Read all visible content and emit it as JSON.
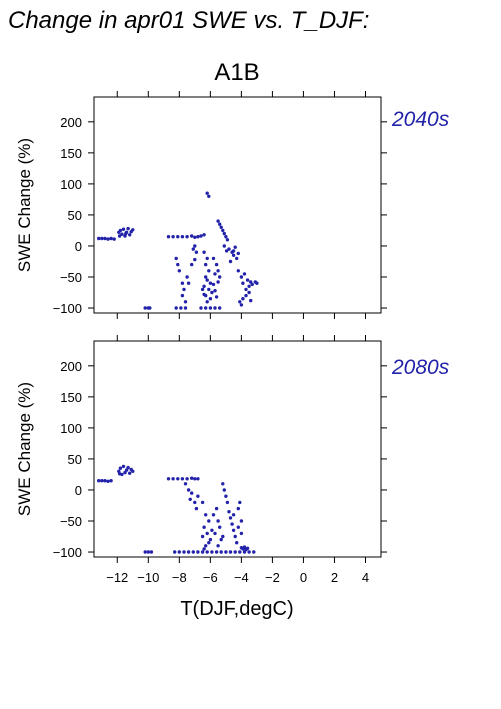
{
  "figure": {
    "title": "Change in apr01 SWE vs. T_DJF:",
    "scenario": "A1B",
    "point_color": "#2222aa"
  },
  "chart_data": [
    {
      "type": "scatter",
      "panel_label": "2040s",
      "xlabel": "T(DJF,degC)",
      "ylabel": "SWE Change (%)",
      "xlim": [
        -13.5,
        5
      ],
      "ylim": [
        -108,
        240
      ],
      "xticks": [
        -12,
        -10,
        -8,
        -6,
        -4,
        -2,
        0,
        2,
        4
      ],
      "xtick_labels": [
        "−12",
        "−10",
        "−8",
        "−6",
        "−4",
        "−2",
        "0",
        "2",
        "4"
      ],
      "yticks": [
        200,
        150,
        100,
        50,
        0,
        -50,
        -100
      ],
      "ytick_labels": [
        "200",
        "150",
        "100",
        "50",
        "0",
        "−50",
        "−100"
      ],
      "grid": false,
      "points": [
        [
          -13.2,
          12
        ],
        [
          -13.0,
          12
        ],
        [
          -12.8,
          12
        ],
        [
          -12.6,
          11
        ],
        [
          -12.4,
          12
        ],
        [
          -12.2,
          11
        ],
        [
          -11.9,
          22
        ],
        [
          -11.8,
          25
        ],
        [
          -11.7,
          19
        ],
        [
          -11.6,
          27
        ],
        [
          -11.5,
          16
        ],
        [
          -11.4,
          22
        ],
        [
          -11.3,
          28
        ],
        [
          -11.2,
          18
        ],
        [
          -11.1,
          23
        ],
        [
          -11.0,
          26
        ],
        [
          -11.85,
          16
        ],
        [
          -11.45,
          20
        ],
        [
          -10.2,
          -100
        ],
        [
          -10.0,
          -100
        ],
        [
          -9.9,
          -100
        ],
        [
          -8.7,
          15
        ],
        [
          -8.4,
          15
        ],
        [
          -8.1,
          15
        ],
        [
          -7.8,
          15
        ],
        [
          -7.5,
          15
        ],
        [
          -7.2,
          16
        ],
        [
          -7.0,
          14
        ],
        [
          -6.8,
          15
        ],
        [
          -6.6,
          16
        ],
        [
          -6.4,
          18
        ],
        [
          -7.0,
          0
        ],
        [
          -7.1,
          -5
        ],
        [
          -6.9,
          -10
        ],
        [
          -7.0,
          -22
        ],
        [
          -7.2,
          -30
        ],
        [
          -7.5,
          -50
        ],
        [
          -7.4,
          -60
        ],
        [
          -8.2,
          -20
        ],
        [
          -8.1,
          -30
        ],
        [
          -8.0,
          -40
        ],
        [
          -7.8,
          -60
        ],
        [
          -7.7,
          -70
        ],
        [
          -7.8,
          -80
        ],
        [
          -7.6,
          -90
        ],
        [
          -6.2,
          85
        ],
        [
          -6.1,
          80
        ],
        [
          -6.4,
          -10
        ],
        [
          -6.2,
          -20
        ],
        [
          -6.3,
          -30
        ],
        [
          -6.1,
          -40
        ],
        [
          -6.3,
          -50
        ],
        [
          -6.2,
          -55
        ],
        [
          -6.0,
          -60
        ],
        [
          -6.4,
          -65
        ],
        [
          -6.1,
          -70
        ],
        [
          -5.9,
          -75
        ],
        [
          -6.3,
          -80
        ],
        [
          -6.0,
          -85
        ],
        [
          -6.2,
          -90
        ],
        [
          -5.8,
          -62
        ],
        [
          -5.7,
          -72
        ],
        [
          -5.6,
          -82
        ],
        [
          -6.5,
          -70
        ],
        [
          -6.4,
          -78
        ],
        [
          -5.8,
          -20
        ],
        [
          -5.6,
          -30
        ],
        [
          -5.5,
          -40
        ],
        [
          -5.4,
          -50
        ],
        [
          -5.7,
          -45
        ],
        [
          -5.5,
          -58
        ],
        [
          -8.2,
          -100
        ],
        [
          -7.9,
          -100
        ],
        [
          -7.6,
          -100
        ],
        [
          -6.6,
          -100
        ],
        [
          -6.3,
          -100
        ],
        [
          -6.0,
          -100
        ],
        [
          -5.7,
          -100
        ],
        [
          -5.4,
          -100
        ],
        [
          -5.5,
          40
        ],
        [
          -5.4,
          35
        ],
        [
          -5.3,
          30
        ],
        [
          -5.2,
          25
        ],
        [
          -5.1,
          20
        ],
        [
          -5.0,
          15
        ],
        [
          -4.9,
          10
        ],
        [
          -5.1,
          0
        ],
        [
          -4.95,
          -8
        ],
        [
          -4.8,
          -5
        ],
        [
          -4.6,
          -10
        ],
        [
          -4.5,
          -15
        ],
        [
          -4.4,
          -2
        ],
        [
          -4.3,
          -20
        ],
        [
          -4.2,
          -12
        ],
        [
          -4.7,
          -25
        ],
        [
          -4.5,
          -8
        ],
        [
          -4.2,
          -40
        ],
        [
          -4.0,
          -50
        ],
        [
          -3.9,
          -60
        ],
        [
          -3.8,
          -45
        ],
        [
          -3.7,
          -70
        ],
        [
          -3.6,
          -55
        ],
        [
          -3.5,
          -65
        ],
        [
          -3.4,
          -58
        ],
        [
          -3.3,
          -62
        ],
        [
          -3.1,
          -58
        ],
        [
          -3.0,
          -60
        ],
        [
          -4.1,
          -90
        ],
        [
          -4.0,
          -95
        ],
        [
          -3.9,
          -85
        ],
        [
          -3.7,
          -80
        ],
        [
          -3.5,
          -75
        ],
        [
          -3.4,
          -88
        ]
      ]
    },
    {
      "type": "scatter",
      "panel_label": "2080s",
      "xlabel": "T(DJF,degC)",
      "ylabel": "SWE Change (%)",
      "xlim": [
        -13.5,
        5
      ],
      "ylim": [
        -108,
        240
      ],
      "xticks": [
        -12,
        -10,
        -8,
        -6,
        -4,
        -2,
        0,
        2,
        4
      ],
      "xtick_labels": [
        "−12",
        "−10",
        "−8",
        "−6",
        "−4",
        "−2",
        "0",
        "2",
        "4"
      ],
      "yticks": [
        200,
        150,
        100,
        50,
        0,
        -50,
        -100
      ],
      "ytick_labels": [
        "200",
        "150",
        "100",
        "50",
        "0",
        "−50",
        "−100"
      ],
      "grid": false,
      "points": [
        [
          -13.2,
          15
        ],
        [
          -13.0,
          15
        ],
        [
          -12.8,
          15
        ],
        [
          -12.6,
          14
        ],
        [
          -12.4,
          15
        ],
        [
          -11.9,
          30
        ],
        [
          -11.8,
          35
        ],
        [
          -11.7,
          25
        ],
        [
          -11.6,
          38
        ],
        [
          -11.5,
          28
        ],
        [
          -11.4,
          32
        ],
        [
          -11.3,
          36
        ],
        [
          -11.2,
          27
        ],
        [
          -11.1,
          33
        ],
        [
          -11.0,
          30
        ],
        [
          -11.85,
          26
        ],
        [
          -10.2,
          -100
        ],
        [
          -10.0,
          -100
        ],
        [
          -9.8,
          -100
        ],
        [
          -8.7,
          18
        ],
        [
          -8.4,
          18
        ],
        [
          -8.1,
          18
        ],
        [
          -7.8,
          18
        ],
        [
          -7.5,
          18
        ],
        [
          -7.2,
          19
        ],
        [
          -7.0,
          18
        ],
        [
          -6.8,
          18
        ],
        [
          -7.6,
          10
        ],
        [
          -7.4,
          0
        ],
        [
          -7.2,
          -5
        ],
        [
          -7.3,
          -15
        ],
        [
          -7.0,
          -20
        ],
        [
          -6.8,
          -10
        ],
        [
          -6.9,
          -30
        ],
        [
          -6.5,
          -20
        ],
        [
          -6.3,
          -40
        ],
        [
          -6.1,
          -50
        ],
        [
          -6.4,
          -60
        ],
        [
          -6.2,
          -70
        ],
        [
          -6.0,
          -80
        ],
        [
          -6.3,
          -90
        ],
        [
          -5.9,
          -65
        ],
        [
          -6.5,
          -75
        ],
        [
          -6.1,
          -85
        ],
        [
          -6.4,
          -95
        ],
        [
          -5.8,
          -40
        ],
        [
          -5.6,
          -30
        ],
        [
          -5.5,
          -50
        ],
        [
          -5.4,
          -60
        ],
        [
          -5.7,
          -70
        ],
        [
          -5.3,
          -80
        ],
        [
          -5.5,
          -90
        ],
        [
          -5.2,
          -75
        ],
        [
          -8.3,
          -100
        ],
        [
          -8.0,
          -100
        ],
        [
          -7.7,
          -100
        ],
        [
          -7.4,
          -100
        ],
        [
          -7.1,
          -100
        ],
        [
          -6.8,
          -100
        ],
        [
          -6.5,
          -100
        ],
        [
          -6.2,
          -100
        ],
        [
          -5.9,
          -100
        ],
        [
          -5.6,
          -100
        ],
        [
          -5.3,
          -100
        ],
        [
          -5.0,
          -100
        ],
        [
          -4.7,
          -100
        ],
        [
          -4.4,
          -100
        ],
        [
          -4.1,
          -100
        ],
        [
          -3.8,
          -100
        ],
        [
          -3.5,
          -100
        ],
        [
          -3.2,
          -100
        ],
        [
          -5.2,
          10
        ],
        [
          -5.1,
          0
        ],
        [
          -5.0,
          -10
        ],
        [
          -4.9,
          -20
        ],
        [
          -4.8,
          -35
        ],
        [
          -4.7,
          -45
        ],
        [
          -4.6,
          -55
        ],
        [
          -4.5,
          -65
        ],
        [
          -4.4,
          -75
        ],
        [
          -4.3,
          -85
        ],
        [
          -4.5,
          -40
        ],
        [
          -4.2,
          -30
        ],
        [
          -4.1,
          -20
        ],
        [
          -4.0,
          -50
        ],
        [
          -4.2,
          -60
        ],
        [
          -4.0,
          -70
        ],
        [
          -4.0,
          -93
        ],
        [
          -3.9,
          -95
        ],
        [
          -3.8,
          -92
        ],
        [
          -3.7,
          -96
        ],
        [
          -3.6,
          -94
        ]
      ]
    }
  ]
}
